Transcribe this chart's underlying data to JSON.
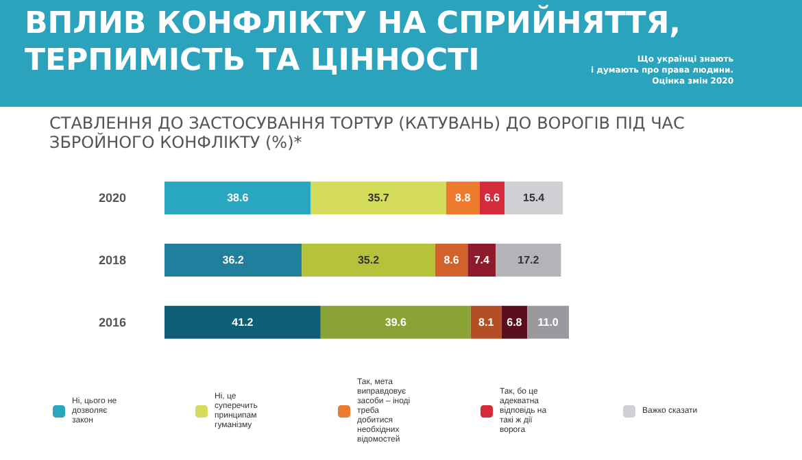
{
  "chart_data": {
    "type": "bar",
    "orientation": "horizontal",
    "stacked": true,
    "legend": "bottom",
    "tick_labels": "y",
    "title": "ВПЛИВ КОНФЛІКТУ НА СПРИЙНЯТТЯ,\nТЕРПИМІСТЬ ТА ЦІННОСТІ",
    "subtitle": "СТАВЛЕННЯ ДО ЗАСТОСУВАННЯ ТОРТУР (КАТУВАНЬ) ДО ВОРОГІВ ПІД ЧАС\nЗБРОЙНОГО КОНФЛІКТУ (%)*",
    "annotations": [
      "Що українці знають\nі думають про права людини.\nОцінка змін 2020"
    ],
    "categories": [
      "2020",
      "2018",
      "2016"
    ],
    "series": [
      {
        "name": "Ні, цього не дозволяє закон",
        "color": "#2aa7c0",
        "colors": [
          "#2aa7c0",
          "#1f7f9c",
          "#0f5e78"
        ],
        "values": [
          38.6,
          36.2,
          41.2
        ],
        "value_labels": [
          "38.6",
          "36.2",
          "41.2"
        ]
      },
      {
        "name": "Ні, це суперечить принципам гуманізму",
        "color": "#d4dc5a",
        "colors": [
          "#d4dc5a",
          "#b6c23a",
          "#8ba236"
        ],
        "values": [
          35.7,
          35.2,
          39.6
        ],
        "value_labels": [
          "35.7",
          "35.2",
          "39.6"
        ]
      },
      {
        "name": "Так, мета виправдовує засоби – іноді треба добитися необхідних відомостей",
        "color": "#ee7a2e",
        "colors": [
          "#ee7a2e",
          "#d2622a",
          "#b34f25"
        ],
        "values": [
          8.8,
          8.6,
          8.1
        ],
        "value_labels": [
          "8.8",
          "8.6",
          "8.1"
        ]
      },
      {
        "name": "Так, бо це адекватна відповідь на такі ж дії ворога",
        "color": "#d42a3a",
        "colors": [
          "#d42a3a",
          "#8e1a2a",
          "#5a0f1c"
        ],
        "values": [
          6.6,
          7.4,
          6.8
        ],
        "value_labels": [
          "6.6",
          "7.4",
          "6.8"
        ]
      },
      {
        "name": "Важко сказати",
        "color": "#d0d0d4",
        "colors": [
          "#d0d0d4",
          "#b4b4b8",
          "#9a9a9e"
        ],
        "values": [
          15.4,
          17.2,
          11.0
        ],
        "value_labels": [
          "15.4",
          "17.2",
          "11.0"
        ]
      }
    ]
  }
}
